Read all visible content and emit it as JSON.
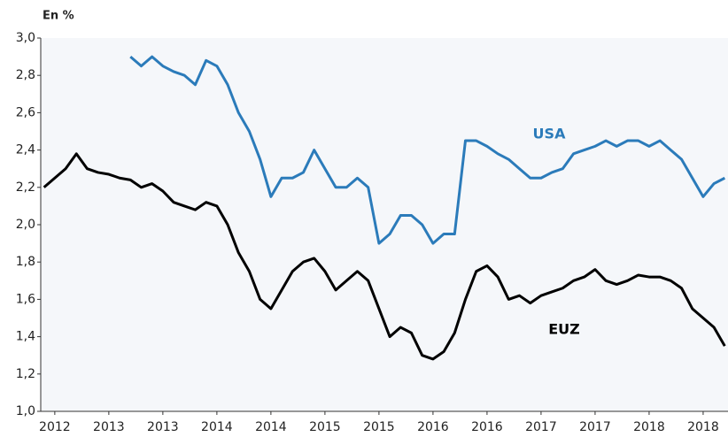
{
  "chart_data": {
    "type": "line",
    "y_label": "En %",
    "annotations": [
      "USA",
      "EUZ"
    ],
    "x": [
      2011.9,
      2012.0,
      2012.1,
      2012.2,
      2012.3,
      2012.4,
      2012.5,
      2012.6,
      2012.7,
      2012.8,
      2012.9,
      2013.0,
      2013.1,
      2013.2,
      2013.3,
      2013.4,
      2013.5,
      2013.6,
      2013.7,
      2013.8,
      2013.9,
      2014.0,
      2014.1,
      2014.2,
      2014.3,
      2014.4,
      2014.5,
      2014.6,
      2014.7,
      2014.8,
      2014.9,
      2015.0,
      2015.1,
      2015.2,
      2015.3,
      2015.4,
      2015.5,
      2015.6,
      2015.7,
      2015.8,
      2015.9,
      2016.0,
      2016.1,
      2016.2,
      2016.3,
      2016.4,
      2016.5,
      2016.6,
      2016.7,
      2016.8,
      2016.9,
      2017.0,
      2017.1,
      2017.2,
      2017.3,
      2017.4,
      2017.5,
      2017.6,
      2017.7,
      2017.8,
      2017.9,
      2018.0,
      2018.1,
      2018.2
    ],
    "series": [
      {
        "name": "USA",
        "color": "#2b7bba",
        "values": [
          null,
          null,
          null,
          null,
          null,
          null,
          null,
          null,
          2.9,
          2.85,
          2.9,
          2.85,
          2.82,
          2.8,
          2.75,
          2.88,
          2.85,
          2.75,
          2.6,
          2.5,
          2.35,
          2.15,
          2.25,
          2.25,
          2.28,
          2.4,
          2.3,
          2.2,
          2.2,
          2.25,
          2.2,
          1.9,
          1.95,
          2.05,
          2.05,
          2.0,
          1.9,
          1.95,
          1.95,
          2.45,
          2.45,
          2.42,
          2.38,
          2.35,
          2.3,
          2.25,
          2.25,
          2.28,
          2.3,
          2.38,
          2.4,
          2.42,
          2.45,
          2.42,
          2.45,
          2.45,
          2.42,
          2.45,
          2.4,
          2.35,
          2.25,
          2.15,
          2.22,
          2.25
        ]
      },
      {
        "name": "EUZ",
        "color": "#000000",
        "values": [
          2.2,
          2.25,
          2.3,
          2.38,
          2.3,
          2.28,
          2.27,
          2.25,
          2.24,
          2.2,
          2.22,
          2.18,
          2.12,
          2.1,
          2.08,
          2.12,
          2.1,
          2.0,
          1.85,
          1.75,
          1.6,
          1.55,
          1.65,
          1.75,
          1.8,
          1.82,
          1.75,
          1.65,
          1.7,
          1.75,
          1.7,
          1.55,
          1.4,
          1.45,
          1.42,
          1.3,
          1.28,
          1.32,
          1.42,
          1.6,
          1.75,
          1.78,
          1.72,
          1.6,
          1.62,
          1.58,
          1.62,
          1.64,
          1.66,
          1.7,
          1.72,
          1.76,
          1.7,
          1.68,
          1.7,
          1.73,
          1.72,
          1.72,
          1.7,
          1.66,
          1.55,
          1.5,
          1.45,
          1.35
        ]
      }
    ],
    "xlim": [
      2011.87,
      2018.23
    ],
    "xticks": [
      {
        "value": 2012.0,
        "label": "2012"
      },
      {
        "value": 2012.5,
        "label": "2013"
      },
      {
        "value": 2013.0,
        "label": "2013"
      },
      {
        "value": 2013.5,
        "label": "2014"
      },
      {
        "value": 2014.0,
        "label": "2014"
      },
      {
        "value": 2014.5,
        "label": "2015"
      },
      {
        "value": 2015.0,
        "label": "2015"
      },
      {
        "value": 2015.5,
        "label": "2016"
      },
      {
        "value": 2016.0,
        "label": "2016"
      },
      {
        "value": 2016.5,
        "label": "2017"
      },
      {
        "value": 2017.0,
        "label": "2017"
      },
      {
        "value": 2017.5,
        "label": "2018"
      },
      {
        "value": 2018.0,
        "label": "2018"
      }
    ],
    "ylim": [
      1.0,
      3.0
    ],
    "yticks": [
      {
        "value": 1.0,
        "label": "1,0"
      },
      {
        "value": 1.2,
        "label": "1,2"
      },
      {
        "value": 1.4,
        "label": "1,4"
      },
      {
        "value": 1.6,
        "label": "1,6"
      },
      {
        "value": 1.8,
        "label": "1,8"
      },
      {
        "value": 2.0,
        "label": "2,0"
      },
      {
        "value": 2.2,
        "label": "2,2"
      },
      {
        "value": 2.4,
        "label": "2,4"
      },
      {
        "value": 2.6,
        "label": "2,6"
      },
      {
        "value": 2.8,
        "label": "2,8"
      },
      {
        "value": 3.0,
        "label": "3,0"
      }
    ],
    "grid": false
  }
}
